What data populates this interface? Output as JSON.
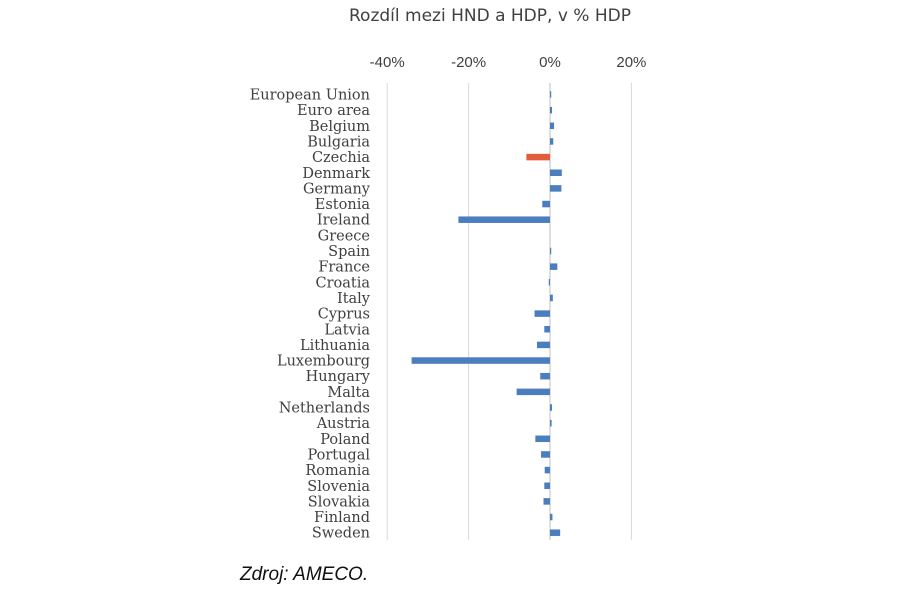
{
  "chart_data": {
    "type": "bar",
    "orientation": "horizontal",
    "title": "Rozdíl mezi HND a HDP, v % HDP",
    "xlabel": "",
    "ylabel": "",
    "xlim": [
      -45,
      25
    ],
    "xticks": [
      -40,
      -20,
      0,
      20
    ],
    "xtick_labels": [
      "-40%",
      "-20%",
      "0%",
      "20%"
    ],
    "grid": true,
    "legend": "none",
    "categories": [
      "European Union",
      "Euro area",
      "Belgium",
      "Bulgaria",
      "Czechia",
      "Denmark",
      "Germany",
      "Estonia",
      "Ireland",
      "Greece",
      "Spain",
      "France",
      "Croatia",
      "Italy",
      "Cyprus",
      "Latvia",
      "Lithuania",
      "Luxembourg",
      "Hungary",
      "Malta",
      "Netherlands",
      "Austria",
      "Poland",
      "Portugal",
      "Romania",
      "Slovenia",
      "Slovakia",
      "Finland",
      "Sweden"
    ],
    "values": [
      0.3,
      0.5,
      1.0,
      0.8,
      -5.8,
      2.9,
      2.8,
      -1.9,
      -22.5,
      0.0,
      0.3,
      1.8,
      -0.3,
      0.7,
      -3.8,
      -1.4,
      -3.2,
      -34.0,
      -2.4,
      -8.2,
      0.5,
      0.4,
      -3.6,
      -2.2,
      -1.3,
      -1.4,
      -1.6,
      0.6,
      2.5
    ],
    "highlight_category": "Czechia",
    "colors": {
      "bar": "#4a7ebf",
      "highlight": "#e35c3c",
      "grid": "#d9d9d9",
      "axis": "#bfbfbf",
      "text": "#404040"
    }
  },
  "source_note": "Zdroj: AMECO."
}
